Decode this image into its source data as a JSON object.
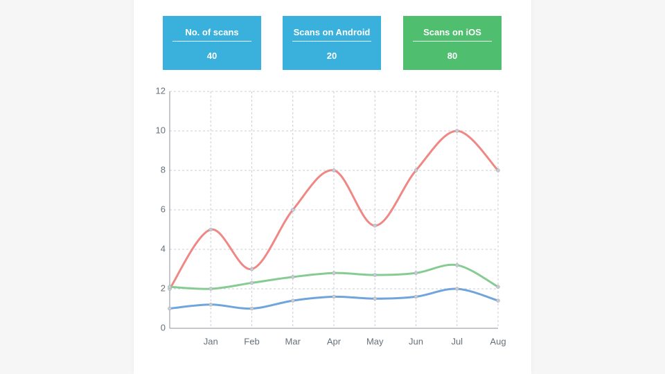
{
  "cards": [
    {
      "title": "No. of scans",
      "value": 40,
      "color": "#3ab1dd"
    },
    {
      "title": "Scans on Android",
      "value": 20,
      "color": "#3ab1dd"
    },
    {
      "title": "Scans on iOS",
      "value": 80,
      "color": "#4fbe6f"
    }
  ],
  "chart_data": {
    "type": "line",
    "categories": [
      null,
      "Jan",
      "Feb",
      "Mar",
      "Apr",
      "May",
      "Jun",
      "Jul",
      "Aug"
    ],
    "series": [
      {
        "color": "#ef8784",
        "values": [
          2,
          5,
          3,
          6,
          8,
          5.2,
          8,
          10,
          8
        ]
      },
      {
        "color": "#86cc92",
        "values": [
          2.1,
          2,
          2.3,
          2.6,
          2.8,
          2.7,
          2.8,
          3.2,
          2.1
        ]
      },
      {
        "color": "#6fa4dc",
        "values": [
          1,
          1.2,
          1,
          1.4,
          1.6,
          1.5,
          1.6,
          2,
          1.4
        ]
      }
    ],
    "ylim": [
      0,
      12
    ],
    "yticks": [
      0,
      2,
      4,
      6,
      8,
      10,
      12
    ],
    "grid": true
  }
}
